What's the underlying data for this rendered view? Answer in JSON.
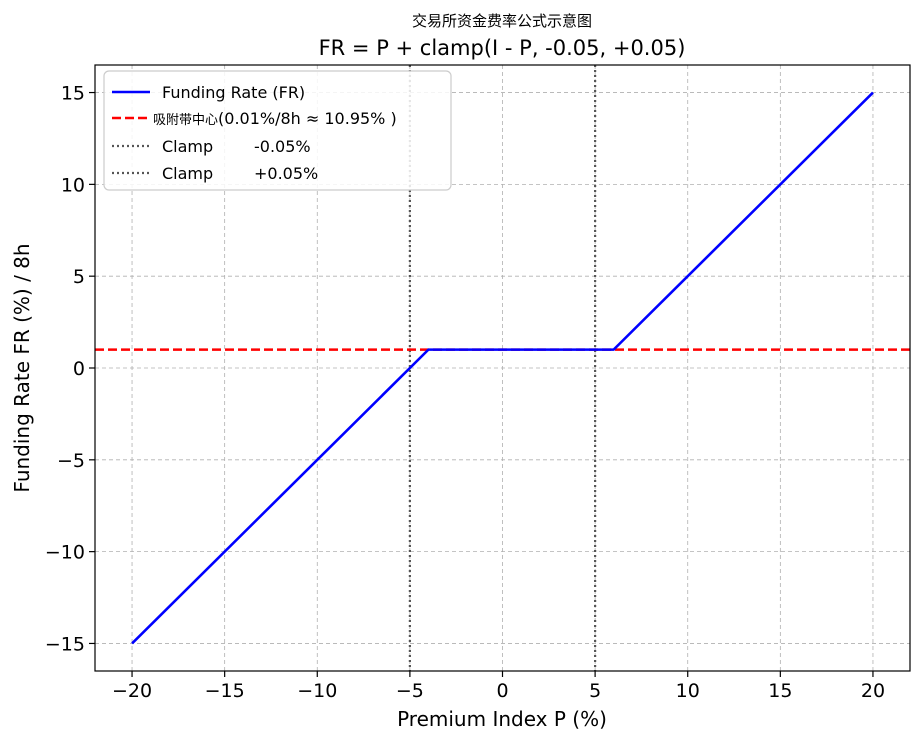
{
  "chart_data": {
    "type": "line",
    "title": "FR = P + clamp(I - P, -0.05, +0.05)",
    "subtitle": "交易所资金费率公式示意图",
    "xlabel": "Premium Index P (%)",
    "ylabel": "Funding Rate FR (%) / 8h",
    "xlim": [
      -22,
      22
    ],
    "ylim": [
      -16.5,
      16.5
    ],
    "xticks": [
      -20,
      -15,
      -10,
      -5,
      0,
      5,
      10,
      15,
      20
    ],
    "yticks": [
      -15,
      -10,
      -5,
      0,
      5,
      10,
      15
    ],
    "xtick_labels": [
      "−20",
      "−15",
      "−10",
      "−5",
      "0",
      "5",
      "10",
      "15",
      "20"
    ],
    "ytick_labels": [
      "−15",
      "−10",
      "−5",
      "0",
      "5",
      "10",
      "15"
    ],
    "grid": true,
    "legend_position": "top-left",
    "series": [
      {
        "name": "Funding Rate (FR)",
        "style": "solid",
        "color": "#0000ff",
        "x": [
          -20,
          -4,
          6,
          20
        ],
        "y": [
          -15,
          1,
          1,
          15
        ]
      }
    ],
    "hlines": [
      {
        "name_cn": "吸附带中心",
        "name_rest": "(0.01%/8h ≈ 10.95%    )",
        "y": 1,
        "style": "dashed",
        "color": "#ff0000"
      }
    ],
    "vlines": [
      {
        "name_a": "Clamp",
        "name_b": "-0.05%",
        "x": -5,
        "style": "dotted",
        "color": "#555555"
      },
      {
        "name_a": "Clamp",
        "name_b": "+0.05%",
        "x": 5,
        "style": "dotted",
        "color": "#555555"
      }
    ]
  }
}
